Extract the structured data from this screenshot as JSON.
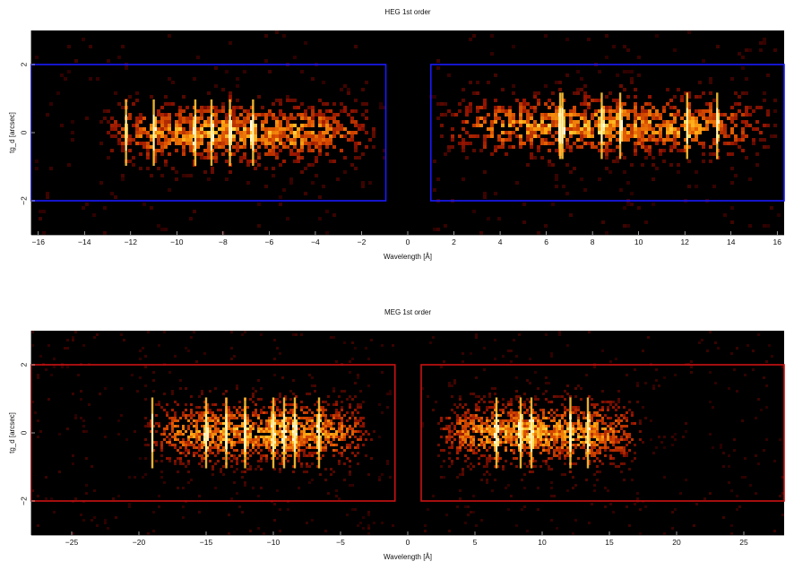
{
  "chart_data": [
    {
      "type": "heatmap",
      "title": "HEG 1st order",
      "xlabel": "Wavelength [Å]",
      "ylabel": "tg_d [arcsec]",
      "xlim": [
        -16.3,
        16.3
      ],
      "ylim": [
        -3.0,
        3.0
      ],
      "x_ticks": [
        -16,
        -14,
        -12,
        -10,
        -8,
        -6,
        -4,
        -2,
        0,
        2,
        4,
        6,
        8,
        10,
        12,
        14,
        16
      ],
      "y_ticks": [
        -2,
        0,
        2
      ],
      "colormap": "black-red-orange-yellow-white",
      "extraction_box_color": "#1a1aff",
      "extraction_regions": [
        {
          "x": [
            -16.3,
            -0.95
          ],
          "y": [
            -2.0,
            2.0
          ]
        },
        {
          "x": [
            1.0,
            16.3
          ],
          "y": [
            -2.0,
            2.0
          ]
        }
      ],
      "emission_bands": [
        {
          "x_range": [
            -12.6,
            -2.0
          ],
          "y_center": 0.0,
          "y_width": 0.75
        },
        {
          "x_range": [
            1.9,
            15.3
          ],
          "y_center": 0.2,
          "y_width": 0.75
        }
      ],
      "bright_lines": [
        -12.2,
        -11.0,
        -9.2,
        -8.5,
        -7.7,
        -6.7,
        6.6,
        6.7,
        8.4,
        9.2,
        12.1,
        13.4
      ]
    },
    {
      "type": "heatmap",
      "title": "MEG 1st order",
      "xlabel": "Wavelength [Å]",
      "ylabel": "tg_d [arcsec]",
      "xlim": [
        -28.0,
        28.0
      ],
      "ylim": [
        -3.0,
        3.0
      ],
      "x_ticks": [
        -25,
        -20,
        -15,
        -10,
        -5,
        0,
        5,
        10,
        15,
        20,
        25
      ],
      "y_ticks": [
        -2,
        0,
        2
      ],
      "colormap": "black-red-orange-yellow-white",
      "extraction_box_color": "#cc1111",
      "extraction_regions": [
        {
          "x": [
            -28.0,
            -0.95
          ],
          "y": [
            -2.0,
            2.0
          ]
        },
        {
          "x": [
            1.0,
            28.0
          ],
          "y": [
            -2.0,
            2.0
          ]
        }
      ],
      "emission_bands": [
        {
          "x_range": [
            -19.0,
            -3.0
          ],
          "y_center": 0.0,
          "y_width": 0.8
        },
        {
          "x_range": [
            2.5,
            17.0
          ],
          "y_center": 0.0,
          "y_width": 0.8
        }
      ],
      "bright_lines": [
        -19.0,
        -15.0,
        -13.5,
        -12.1,
        -10.0,
        -9.2,
        -8.4,
        -6.6,
        6.6,
        8.4,
        9.2,
        12.1,
        13.4
      ]
    }
  ]
}
